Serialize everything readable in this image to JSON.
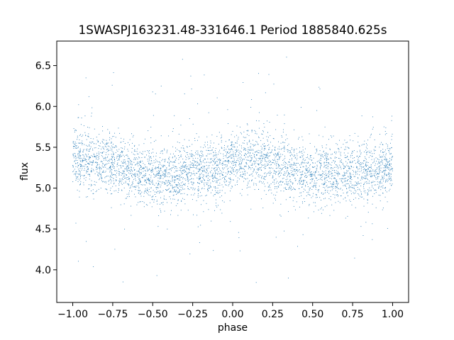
{
  "chart_data": {
    "type": "scatter",
    "title": "1SWASPJ163231.48-331646.1 Period 1885840.625s",
    "xlabel": "phase",
    "ylabel": "flux",
    "xlim": [
      -1.1,
      1.1
    ],
    "ylim": [
      3.6,
      6.8
    ],
    "xticks": [
      -1.0,
      -0.75,
      -0.5,
      -0.25,
      0.0,
      0.25,
      0.5,
      0.75,
      1.0
    ],
    "xtick_labels": [
      "−1.00",
      "−0.75",
      "−0.50",
      "−0.25",
      "0.00",
      "0.25",
      "0.50",
      "0.75",
      "1.00"
    ],
    "yticks": [
      4.0,
      4.5,
      5.0,
      5.5,
      6.0,
      6.5
    ],
    "ytick_labels": [
      "4.0",
      "4.5",
      "5.0",
      "5.5",
      "6.0",
      "6.5"
    ],
    "grid": false,
    "marker_color": "#1f77b4",
    "series": [
      {
        "x_range": [
          -1.0,
          1.0
        ],
        "profile": [
          {
            "x": -1.0,
            "y": 5.35
          },
          {
            "x": -0.9,
            "y": 5.35
          },
          {
            "x": -0.75,
            "y": 5.3
          },
          {
            "x": -0.6,
            "y": 5.18
          },
          {
            "x": -0.5,
            "y": 5.15
          },
          {
            "x": -0.4,
            "y": 5.15
          },
          {
            "x": -0.25,
            "y": 5.2
          },
          {
            "x": -0.1,
            "y": 5.22
          },
          {
            "x": 0.0,
            "y": 5.3
          },
          {
            "x": 0.1,
            "y": 5.35
          },
          {
            "x": 0.25,
            "y": 5.3
          },
          {
            "x": 0.4,
            "y": 5.2
          },
          {
            "x": 0.5,
            "y": 5.15
          },
          {
            "x": 0.6,
            "y": 5.15
          },
          {
            "x": 0.75,
            "y": 5.2
          },
          {
            "x": 0.9,
            "y": 5.22
          },
          {
            "x": 1.0,
            "y": 5.3
          }
        ],
        "typical_scatter": 0.18,
        "y_min": 3.75,
        "y_max": 6.7
      }
    ]
  }
}
